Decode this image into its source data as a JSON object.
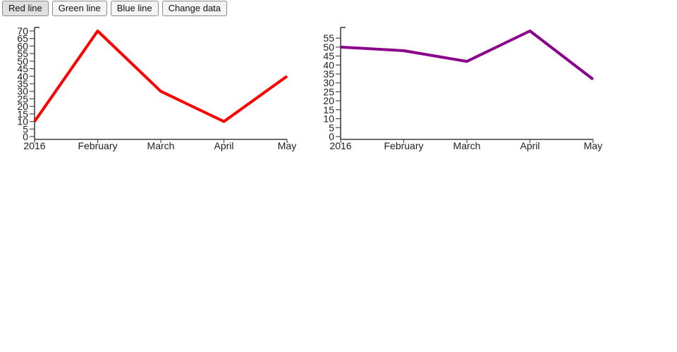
{
  "toolbar": {
    "buttons": [
      {
        "id": "red",
        "label": "Red line",
        "active": true
      },
      {
        "id": "green",
        "label": "Green line",
        "active": false
      },
      {
        "id": "blue",
        "label": "Blue line",
        "active": false
      },
      {
        "id": "change",
        "label": "Change data",
        "active": false
      }
    ]
  },
  "colors": {
    "red_line": "#ff0000",
    "purple_line": "#8b008b",
    "axis": "#151515",
    "tick": "#4a4a4a",
    "label": "#1d1d1d"
  },
  "chart_data": [
    {
      "type": "line",
      "title": "",
      "xlabel": "",
      "ylabel": "",
      "categories": [
        "2016",
        "February",
        "March",
        "April",
        "May"
      ],
      "series": [
        {
          "name": "Red line",
          "color": "#ff0000",
          "values": [
            10,
            70,
            30,
            10,
            40
          ]
        }
      ],
      "ylim": [
        0,
        70
      ],
      "yticks": [
        0,
        5,
        10,
        15,
        20,
        25,
        30,
        35,
        40,
        45,
        50,
        55,
        60,
        65,
        70
      ],
      "grid": false,
      "legend": "none"
    },
    {
      "type": "line",
      "title": "",
      "xlabel": "",
      "ylabel": "",
      "categories": [
        "2016",
        "February",
        "March",
        "April",
        "May"
      ],
      "series": [
        {
          "name": "Purple line",
          "color": "#8b008b",
          "values": [
            50,
            48,
            42,
            59,
            32
          ]
        }
      ],
      "ylim": [
        0,
        59
      ],
      "yticks": [
        0,
        5,
        10,
        15,
        20,
        25,
        30,
        35,
        40,
        45,
        50,
        55
      ],
      "grid": false,
      "legend": "none"
    }
  ]
}
